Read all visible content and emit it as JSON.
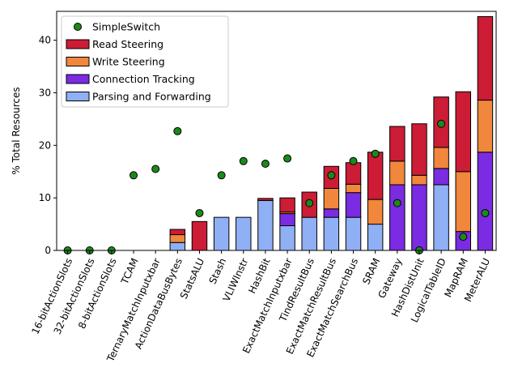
{
  "chart_data": {
    "type": "bar",
    "stacked": true,
    "ylabel": "% Total Resources",
    "xlabel": "",
    "ylim": [
      0,
      45.5
    ],
    "yticks": [
      0,
      10,
      20,
      30,
      40
    ],
    "grid": false,
    "legend_position": "upper-left",
    "categories": [
      "16-bitActionSlots",
      "32-bitActionSlots",
      "8-bitActionSlots",
      "TCAM",
      "TernaryMatchInputxbar",
      "ActionDataBusBytes",
      "StatsALU",
      "Stash",
      "VLIWInstr",
      "HashBit",
      "ExactMatchInputxbar",
      "TindResultBus",
      "ExactMatchResultBus",
      "ExactMatchSearchBus",
      "SRAM",
      "Gateway",
      "HashDistUnit",
      "LogicalTableID",
      "MapRAM",
      "MeterALU"
    ],
    "series": [
      {
        "name": "Parsing and Forwarding",
        "color": "#8fb0f5",
        "values": [
          0,
          0,
          0,
          0,
          0,
          1.5,
          0,
          6.3,
          6.3,
          9.5,
          4.7,
          6.3,
          6.3,
          6.3,
          5.0,
          0,
          0,
          12.5,
          0,
          0
        ]
      },
      {
        "name": "Connection Tracking",
        "color": "#7b2be2",
        "values": [
          0,
          0,
          0,
          0,
          0,
          0,
          0,
          0,
          0,
          0,
          2.3,
          0,
          1.6,
          4.7,
          0,
          12.5,
          12.5,
          3.1,
          3.6,
          18.7
        ]
      },
      {
        "name": "Write Steering",
        "color": "#f0873c",
        "values": [
          0,
          0,
          0,
          0,
          0,
          1.5,
          0,
          0,
          0,
          0,
          0.3,
          0,
          3.9,
          1.6,
          4.7,
          4.5,
          1.8,
          4.0,
          11.4,
          9.9
        ]
      },
      {
        "name": "Read Steering",
        "color": "#cc1c36",
        "values": [
          0,
          0,
          0,
          0,
          0,
          1.0,
          5.5,
          0,
          0,
          0.4,
          2.7,
          4.8,
          4.2,
          4.1,
          9.0,
          6.6,
          9.8,
          9.6,
          15.2,
          15.9
        ]
      }
    ],
    "scatter": {
      "name": "SimpleSwitch",
      "color": "#1a8a1a",
      "values": [
        0,
        0,
        0,
        14.3,
        15.5,
        22.7,
        7.1,
        14.3,
        17.0,
        16.5,
        17.5,
        9.0,
        14.3,
        17.0,
        18.4,
        9.0,
        0,
        24.1,
        2.6,
        7.1
      ]
    }
  }
}
